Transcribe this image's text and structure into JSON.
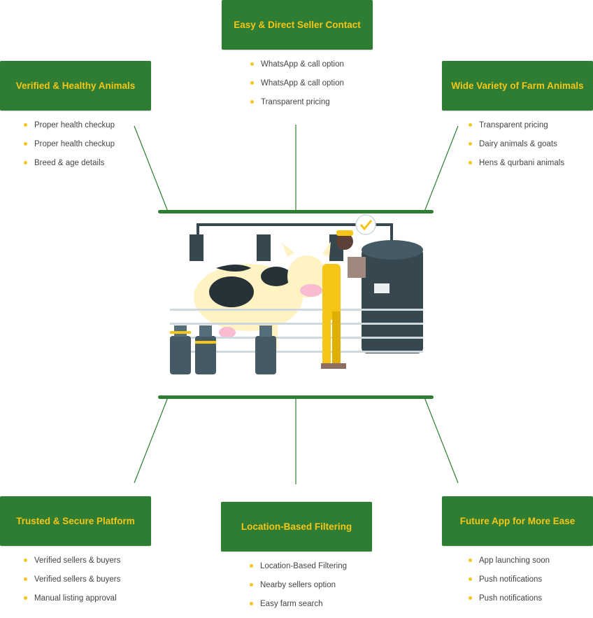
{
  "colors": {
    "card_bg": "#2e7d32",
    "card_text": "#f5c518",
    "bullet": "#f5c518",
    "line": "#2e7d32"
  },
  "features": [
    {
      "title": "Easy & Direct Seller Contact",
      "items": [
        "WhatsApp & call option",
        "WhatsApp & call option",
        "Transparent pricing"
      ]
    },
    {
      "title": "Verified & Healthy Animals",
      "items": [
        "Proper health checkup",
        "Proper health checkup",
        "Breed & age details"
      ]
    },
    {
      "title": "Wide Variety of Farm Animals",
      "items": [
        "Transparent pricing",
        "Dairy animals & goats",
        "Hens & qurbani animals"
      ]
    },
    {
      "title": "Trusted & Secure Platform",
      "items": [
        "Verified sellers & buyers",
        "Verified sellers & buyers",
        "Manual listing approval"
      ]
    },
    {
      "title": "Location-Based Filtering",
      "items": [
        "Location-Based Filtering",
        "Nearby sellers option",
        "Easy farm search"
      ]
    },
    {
      "title": "Future App for More Ease",
      "items": [
        "App launching soon",
        "Push notifications",
        "Push notifications"
      ]
    }
  ],
  "illustration": {
    "icon": "dairy-farm-illustration"
  }
}
